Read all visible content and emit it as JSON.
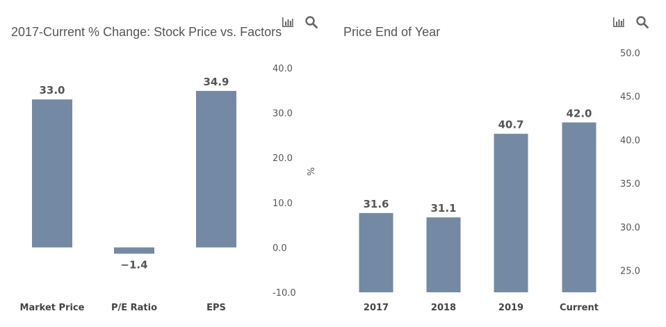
{
  "toolbar_icons": [
    "bar-chart-icon",
    "search-icon"
  ],
  "colors": {
    "bar": "#7489a3",
    "text": "#555555"
  },
  "chart_data": [
    {
      "type": "bar",
      "title": "2017-Current % Change: Stock Price vs. Factors",
      "categories": [
        "Market Price",
        "P/E Ratio",
        "EPS"
      ],
      "values": [
        33.0,
        -1.4,
        34.9
      ],
      "data_labels": [
        "33.0",
        "−1.4",
        "34.9"
      ],
      "ylabel": "%",
      "ylim": [
        -10,
        40
      ],
      "yticks": [
        "40.0",
        "30.0",
        "20.0",
        "10.0",
        "0.0",
        "-10.0"
      ],
      "ytick_values": [
        40,
        30,
        20,
        10,
        0,
        -10
      ],
      "yaxis_position": "right",
      "grid": false,
      "legend": "none"
    },
    {
      "type": "bar",
      "title": "Price End of Year",
      "categories": [
        "2017",
        "2018",
        "2019",
        "Current"
      ],
      "values": [
        31.6,
        31.1,
        40.7,
        42.0
      ],
      "data_labels": [
        "31.6",
        "31.1",
        "40.7",
        "42.0"
      ],
      "ylabel": "",
      "ylim": [
        22.5,
        50
      ],
      "yticks": [
        "50.0",
        "45.0",
        "40.0",
        "35.0",
        "30.0",
        "25.0"
      ],
      "ytick_values": [
        50,
        45,
        40,
        35,
        30,
        25
      ],
      "yaxis_position": "right",
      "grid": false,
      "legend": "none"
    }
  ]
}
